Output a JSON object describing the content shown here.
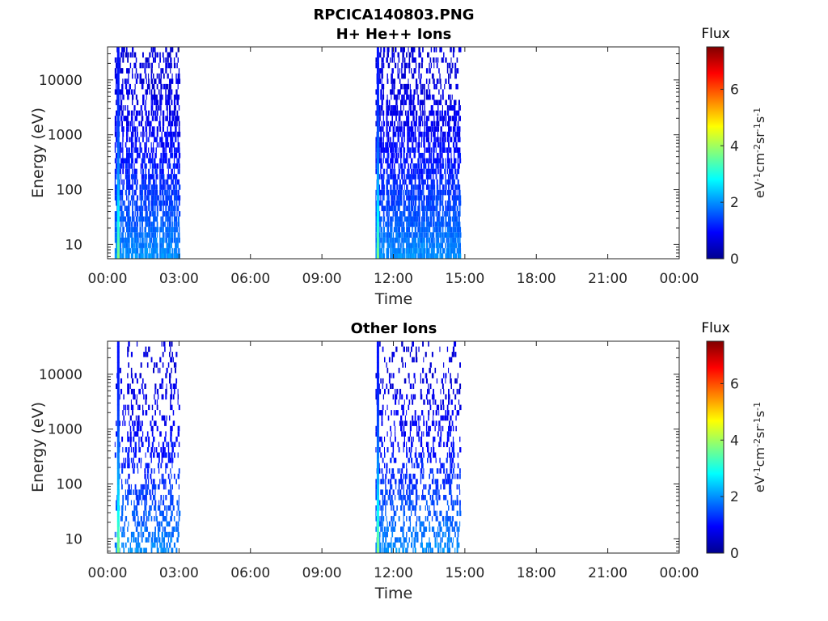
{
  "title_line1": "RPCICA140803.PNG",
  "chart_data": [
    {
      "type": "heatmap",
      "title": "H+ He++ Ions",
      "xlabel": "Time",
      "ylabel": "Energy (eV)",
      "x_ticks": [
        "00:00",
        "03:00",
        "06:00",
        "09:00",
        "12:00",
        "15:00",
        "18:00",
        "21:00",
        "00:00"
      ],
      "y_ticks": [
        "10",
        "100",
        "1000",
        "10000"
      ],
      "y_scale": "log",
      "xlim_hours": [
        0,
        24
      ],
      "ylim_eV": [
        5.5,
        40000
      ],
      "colorbar": {
        "title": "Flux",
        "unit_base": [
          "eV",
          "cm",
          "sr",
          "s"
        ],
        "unit_exp": [
          "-1",
          "-2",
          "-1",
          "-1"
        ],
        "ticks": [
          "0",
          "2",
          "4",
          "6"
        ],
        "range": [
          0,
          7.5
        ],
        "colormap": "jet"
      },
      "data_segments": [
        {
          "start_hours": 0.3,
          "end_hours": 3.0,
          "intense_start_hours": 0.4,
          "peak_flux": 1.0
        },
        {
          "start_hours": 11.25,
          "end_hours": 14.8,
          "intense_start_hours": 11.3,
          "peak_flux": 1.0
        }
      ],
      "activity": 1.0
    },
    {
      "type": "heatmap",
      "title": "Other Ions",
      "xlabel": "Time",
      "ylabel": "Energy (eV)",
      "x_ticks": [
        "00:00",
        "03:00",
        "06:00",
        "09:00",
        "12:00",
        "15:00",
        "18:00",
        "21:00",
        "00:00"
      ],
      "y_ticks": [
        "10",
        "100",
        "1000",
        "10000"
      ],
      "y_scale": "log",
      "xlim_hours": [
        0,
        24
      ],
      "ylim_eV": [
        5.5,
        40000
      ],
      "colorbar": {
        "title": "Flux",
        "unit_base": [
          "eV",
          "cm",
          "sr",
          "s"
        ],
        "unit_exp": [
          "-1",
          "-2",
          "-1",
          "-1"
        ],
        "ticks": [
          "0",
          "2",
          "4",
          "6"
        ],
        "range": [
          0,
          7.5
        ],
        "colormap": "jet"
      },
      "data_segments": [
        {
          "start_hours": 0.3,
          "end_hours": 3.0,
          "intense_start_hours": 0.4,
          "peak_flux": 1.0
        },
        {
          "start_hours": 11.25,
          "end_hours": 14.8,
          "intense_start_hours": 11.3,
          "peak_flux": 1.0
        }
      ],
      "activity": 0.45
    }
  ]
}
